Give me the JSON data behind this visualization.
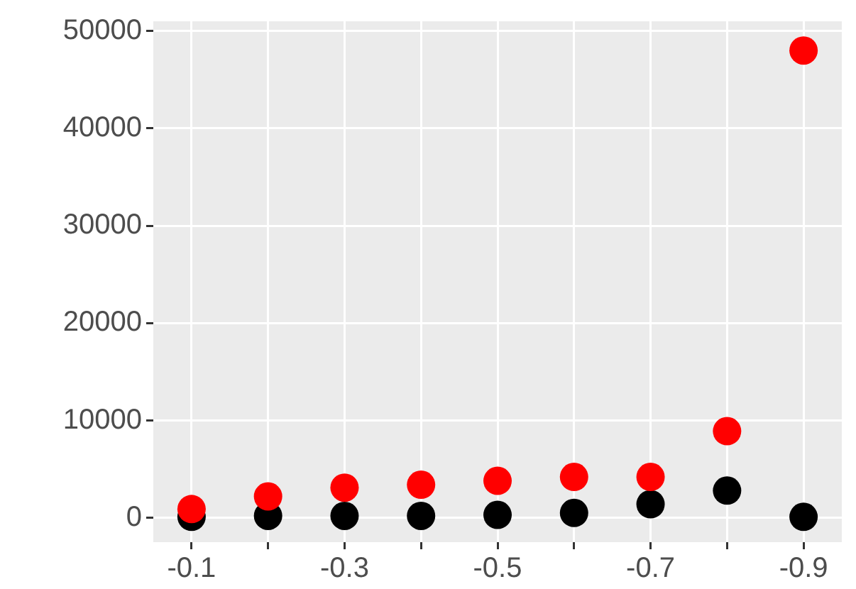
{
  "chart_data": {
    "type": "scatter",
    "categories": [
      "-0.1",
      null,
      "-0.3",
      null,
      "-0.5",
      null,
      "-0.7",
      null,
      "-0.9"
    ],
    "series": [
      {
        "color": "#000000",
        "values": [
          100,
          200,
          200,
          200,
          300,
          500,
          1400,
          2800,
          100
        ]
      },
      {
        "color": "#ff0000",
        "values": [
          900,
          2200,
          3100,
          3400,
          3800,
          4200,
          4200,
          8900,
          48000
        ]
      }
    ],
    "ylim": [
      -2500,
      51000
    ],
    "yticks": [
      0,
      10000,
      20000,
      30000,
      40000,
      50000
    ],
    "grid": true,
    "legend": false,
    "marker": "circle"
  }
}
